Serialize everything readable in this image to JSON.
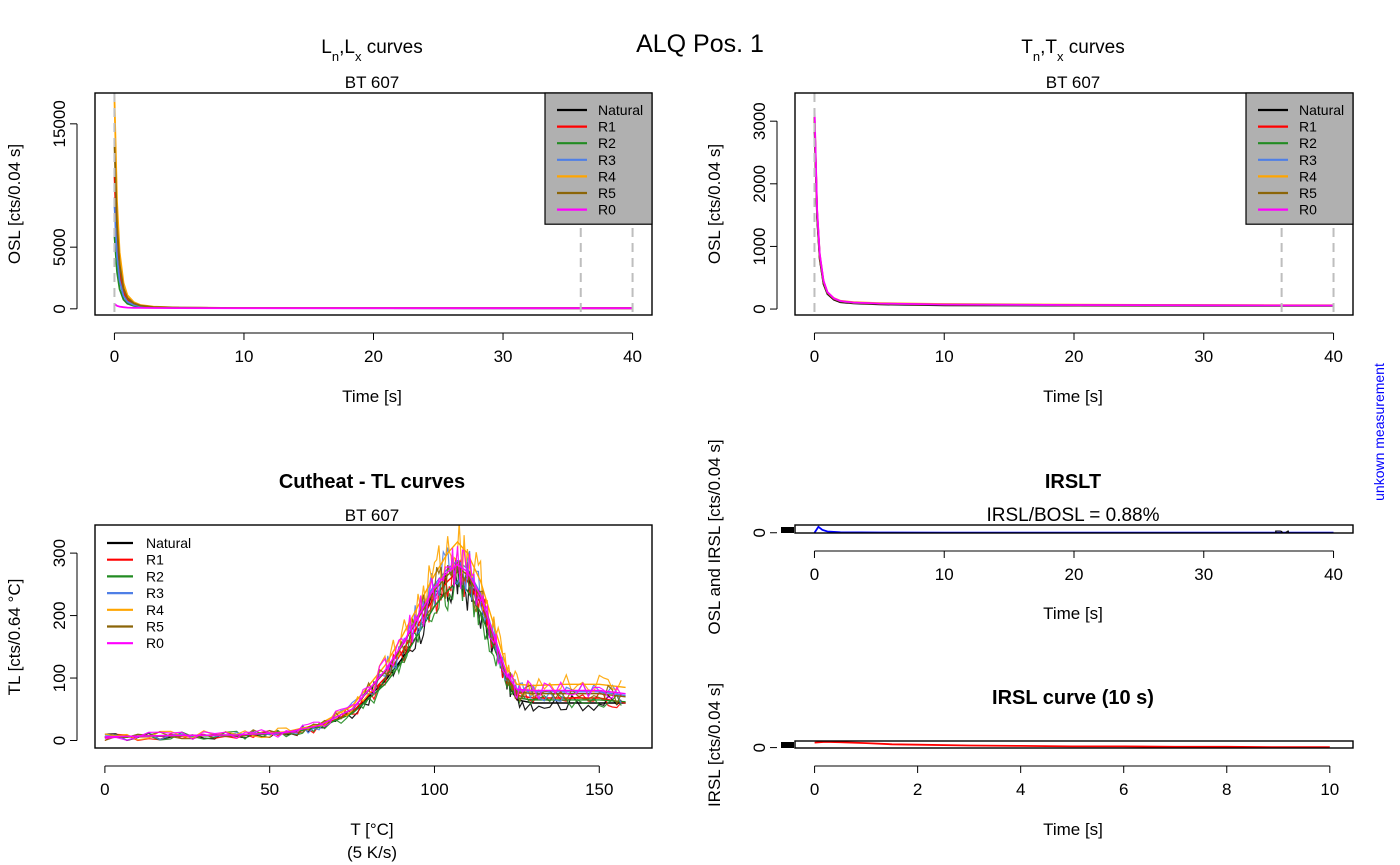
{
  "figure": {
    "main_title": "ALQ Pos. 1",
    "side_note": "unkown measurement"
  },
  "colors": {
    "Natural": "#000000",
    "R1": "#ff0000",
    "R2": "#228b22",
    "R3": "#4f7fe6",
    "R4": "#ffa500",
    "R5": "#8b6508",
    "R0": "#ff00ff",
    "ir": "#0000ff",
    "legend_bg": "#b0b0b0",
    "marker": "#bebebe"
  },
  "chart_data": [
    {
      "id": "lxcurves",
      "type": "line",
      "title_parts": [
        "L",
        "n",
        ",L",
        "x",
        " curves"
      ],
      "subtitle": "BT 607",
      "xlabel": "Time [s]",
      "ylabel": "OSL [cts/0.04 s]",
      "xlim": [
        -1.5,
        41.5
      ],
      "ylim": [
        -500,
        17500
      ],
      "xticks": [
        0,
        10,
        20,
        30,
        40
      ],
      "yticks": [
        0,
        5000,
        15000
      ],
      "grid": false,
      "legend": "top-right",
      "legend_entries": [
        "Natural",
        "R1",
        "R2",
        "R3",
        "R4",
        "R5",
        "R0"
      ],
      "vlines": [
        0,
        36,
        40
      ],
      "series": [
        {
          "name": "Natural",
          "x": [
            0,
            0.2,
            0.4,
            0.7,
            1,
            1.5,
            2,
            3,
            5,
            10,
            20,
            30,
            40
          ],
          "values": [
            9000,
            4500,
            2400,
            1100,
            600,
            320,
            200,
            120,
            80,
            65,
            60,
            55,
            55
          ]
        },
        {
          "name": "R1",
          "x": [
            0,
            0.2,
            0.4,
            0.7,
            1,
            1.5,
            2,
            3,
            5,
            10,
            20,
            30,
            40
          ],
          "values": [
            11000,
            5500,
            2900,
            1300,
            700,
            360,
            220,
            130,
            85,
            65,
            60,
            55,
            55
          ]
        },
        {
          "name": "R2",
          "x": [
            0,
            0.2,
            0.4,
            0.7,
            1,
            1.5,
            2,
            3,
            5,
            10,
            20,
            30,
            40
          ],
          "values": [
            6000,
            3000,
            1600,
            750,
            420,
            240,
            160,
            110,
            75,
            60,
            55,
            55,
            50
          ]
        },
        {
          "name": "R3",
          "x": [
            0,
            0.2,
            0.4,
            0.7,
            1,
            1.5,
            2,
            3,
            5,
            10,
            20,
            30,
            40
          ],
          "values": [
            8500,
            4300,
            2300,
            1050,
            580,
            310,
            200,
            120,
            80,
            65,
            60,
            55,
            55
          ]
        },
        {
          "name": "R4",
          "x": [
            0,
            0.2,
            0.4,
            0.7,
            1,
            1.5,
            2,
            3,
            5,
            10,
            20,
            30,
            40
          ],
          "values": [
            17200,
            8700,
            4600,
            2100,
            1100,
            540,
            310,
            170,
            100,
            70,
            62,
            58,
            55
          ]
        },
        {
          "name": "R5",
          "x": [
            0,
            0.2,
            0.4,
            0.7,
            1,
            1.5,
            2,
            3,
            5,
            10,
            20,
            30,
            40
          ],
          "values": [
            13500,
            6800,
            3600,
            1650,
            880,
            440,
            260,
            150,
            90,
            68,
            60,
            56,
            55
          ]
        },
        {
          "name": "R0",
          "x": [
            0,
            0.2,
            0.4,
            0.7,
            1,
            1.5,
            2,
            3,
            5,
            10,
            20,
            30,
            40
          ],
          "values": [
            400,
            250,
            180,
            130,
            100,
            85,
            75,
            65,
            60,
            55,
            52,
            50,
            50
          ]
        }
      ]
    },
    {
      "id": "txcurves",
      "type": "line",
      "title_parts": [
        "T",
        "n",
        ",T",
        "x",
        " curves"
      ],
      "subtitle": "BT 607",
      "xlabel": "Time [s]",
      "ylabel": "OSL [cts/0.04 s]",
      "xlim": [
        -1.5,
        41.5
      ],
      "ylim": [
        -95,
        3450
      ],
      "xticks": [
        0,
        10,
        20,
        30,
        40
      ],
      "yticks": [
        0,
        1000,
        2000,
        3000
      ],
      "grid": false,
      "legend": "top-right",
      "legend_entries": [
        "Natural",
        "R1",
        "R2",
        "R3",
        "R4",
        "R5",
        "R0"
      ],
      "vlines": [
        0,
        36,
        40
      ],
      "series": [
        {
          "name": "Natural",
          "x": [
            0,
            0.2,
            0.4,
            0.7,
            1,
            1.5,
            2,
            3,
            5,
            10,
            20,
            30,
            40
          ],
          "values": [
            2900,
            1450,
            800,
            400,
            240,
            150,
            110,
            90,
            75,
            60,
            55,
            50,
            50
          ]
        },
        {
          "name": "R1",
          "x": [
            0,
            0.2,
            0.4,
            0.7,
            1,
            1.5,
            2,
            3,
            5,
            10,
            20,
            30,
            40
          ],
          "values": [
            3000,
            1500,
            830,
            420,
            255,
            160,
            120,
            100,
            85,
            70,
            62,
            58,
            55
          ]
        },
        {
          "name": "R2",
          "x": [
            0,
            0.2,
            0.4,
            0.7,
            1,
            1.5,
            2,
            3,
            5,
            10,
            20,
            30,
            40
          ],
          "values": [
            3050,
            1530,
            850,
            430,
            260,
            165,
            122,
            100,
            85,
            70,
            62,
            58,
            55
          ]
        },
        {
          "name": "R3",
          "x": [
            0,
            0.2,
            0.4,
            0.7,
            1,
            1.5,
            2,
            3,
            5,
            10,
            20,
            30,
            40
          ],
          "values": [
            3100,
            1550,
            860,
            440,
            265,
            168,
            125,
            102,
            88,
            72,
            64,
            60,
            57
          ]
        },
        {
          "name": "R4",
          "x": [
            0,
            0.2,
            0.4,
            0.7,
            1,
            1.5,
            2,
            3,
            5,
            10,
            20,
            30,
            40
          ],
          "values": [
            3150,
            1580,
            880,
            450,
            270,
            175,
            132,
            110,
            95,
            80,
            70,
            65,
            60
          ]
        },
        {
          "name": "R5",
          "x": [
            0,
            0.2,
            0.4,
            0.7,
            1,
            1.5,
            2,
            3,
            5,
            10,
            20,
            30,
            40
          ],
          "values": [
            3080,
            1540,
            850,
            432,
            262,
            166,
            124,
            102,
            86,
            72,
            64,
            60,
            56
          ]
        },
        {
          "name": "R0",
          "x": [
            0,
            0.2,
            0.4,
            0.7,
            1,
            1.5,
            2,
            3,
            5,
            10,
            20,
            30,
            40
          ],
          "values": [
            3200,
            1600,
            890,
            455,
            272,
            172,
            128,
            104,
            88,
            73,
            65,
            60,
            57
          ]
        }
      ]
    },
    {
      "id": "tlcurves",
      "type": "line",
      "title": "Cutheat - TL curves",
      "subtitle": "BT 607",
      "xlabel": "T [°C]",
      "xlabel2": "(5 K/s)",
      "ylabel": "TL [cts/0.64 °C]",
      "xlim": [
        -3,
        166
      ],
      "ylim": [
        -12,
        345
      ],
      "xticks": [
        0,
        50,
        100,
        150
      ],
      "yticks": [
        0,
        100,
        200,
        300
      ],
      "grid": false,
      "legend": "top-left",
      "legend_entries": [
        "Natural",
        "R1",
        "R2",
        "R3",
        "R4",
        "R5",
        "R0"
      ],
      "series": [
        {
          "name": "Natural",
          "x": [
            0,
            20,
            40,
            55,
            65,
            75,
            85,
            90,
            95,
            100,
            104,
            107,
            110,
            114,
            118,
            122,
            125,
            130,
            140,
            150,
            158
          ],
          "values": [
            5,
            7,
            8,
            12,
            22,
            45,
            95,
            130,
            170,
            215,
            240,
            255,
            240,
            205,
            150,
            95,
            65,
            60,
            60,
            60,
            60
          ]
        },
        {
          "name": "R1",
          "x": [
            0,
            20,
            40,
            55,
            65,
            75,
            85,
            90,
            95,
            100,
            104,
            107,
            110,
            114,
            118,
            122,
            125,
            130,
            140,
            150,
            158
          ],
          "values": [
            5,
            7,
            8,
            12,
            22,
            45,
            100,
            140,
            185,
            230,
            255,
            270,
            255,
            220,
            160,
            100,
            72,
            68,
            68,
            68,
            60
          ]
        },
        {
          "name": "R2",
          "x": [
            0,
            20,
            40,
            55,
            65,
            75,
            85,
            90,
            95,
            100,
            104,
            107,
            110,
            114,
            118,
            122,
            125,
            130,
            140,
            150,
            158
          ],
          "values": [
            6,
            7,
            8,
            12,
            21,
            43,
            90,
            125,
            170,
            215,
            240,
            255,
            240,
            205,
            150,
            95,
            68,
            65,
            65,
            65,
            62
          ]
        },
        {
          "name": "R3",
          "x": [
            0,
            20,
            40,
            55,
            65,
            75,
            85,
            90,
            95,
            100,
            104,
            107,
            110,
            114,
            118,
            122,
            125,
            130,
            140,
            150,
            158
          ],
          "values": [
            6,
            8,
            9,
            13,
            24,
            50,
            110,
            150,
            200,
            250,
            275,
            288,
            275,
            235,
            170,
            105,
            80,
            78,
            78,
            78,
            72
          ]
        },
        {
          "name": "R4",
          "x": [
            0,
            20,
            40,
            55,
            65,
            75,
            85,
            90,
            95,
            100,
            104,
            107,
            110,
            114,
            118,
            122,
            125,
            130,
            140,
            150,
            158
          ],
          "values": [
            6,
            8,
            9,
            14,
            26,
            55,
            120,
            165,
            215,
            265,
            300,
            318,
            300,
            255,
            185,
            115,
            90,
            88,
            90,
            90,
            85
          ]
        },
        {
          "name": "R5",
          "x": [
            0,
            20,
            40,
            55,
            65,
            75,
            85,
            90,
            95,
            100,
            104,
            107,
            110,
            114,
            118,
            122,
            125,
            130,
            140,
            150,
            158
          ],
          "values": [
            6,
            8,
            9,
            13,
            24,
            50,
            110,
            150,
            195,
            240,
            265,
            278,
            265,
            228,
            165,
            102,
            78,
            75,
            75,
            75,
            70
          ]
        },
        {
          "name": "R0",
          "x": [
            0,
            20,
            40,
            55,
            65,
            75,
            85,
            90,
            95,
            100,
            104,
            107,
            110,
            114,
            118,
            122,
            125,
            130,
            140,
            150,
            158
          ],
          "values": [
            6,
            8,
            9,
            13,
            24,
            50,
            112,
            152,
            198,
            245,
            270,
            282,
            270,
            232,
            168,
            105,
            82,
            80,
            80,
            80,
            75
          ]
        }
      ]
    },
    {
      "id": "irslt",
      "type": "line",
      "title": "IRSLT",
      "annotation": "IRSL/BOSL = 0.88%",
      "overlap_label": "R1",
      "xlabel": "Time [s]",
      "ylabel": "OSL and IRSL [cts/0.04 s]",
      "xlim": [
        -1.5,
        41.5
      ],
      "ylim": [
        -5,
        155
      ],
      "xticks": [
        0,
        10,
        20,
        30,
        40
      ],
      "yticks": [
        0
      ],
      "grid": false,
      "series": [
        {
          "name": "IRSL",
          "x": [
            0,
            0.3,
            0.6,
            1,
            2,
            5,
            10,
            20,
            30,
            40
          ],
          "values": [
            0,
            120,
            60,
            25,
            10,
            5,
            3,
            2,
            2,
            2
          ]
        }
      ]
    },
    {
      "id": "irslcurve",
      "type": "line",
      "title": "IRSL curve (10 s)",
      "xlabel": "Time [s]",
      "ylabel": "IRSL [cts/0.04 s]",
      "xlim": [
        -0.38,
        10.45
      ],
      "ylim": [
        -1,
        16
      ],
      "xticks": [
        0,
        2,
        4,
        6,
        8,
        10
      ],
      "yticks": [
        0
      ],
      "grid": false,
      "series": [
        {
          "name": "IRSL",
          "x": [
            0,
            0.2,
            0.5,
            1,
            1.5,
            2,
            3,
            4,
            5,
            6,
            7,
            8,
            9,
            10
          ],
          "values": [
            12,
            14,
            13,
            11,
            8,
            7,
            5,
            4,
            3,
            3,
            2,
            2,
            1,
            1
          ]
        }
      ]
    }
  ]
}
